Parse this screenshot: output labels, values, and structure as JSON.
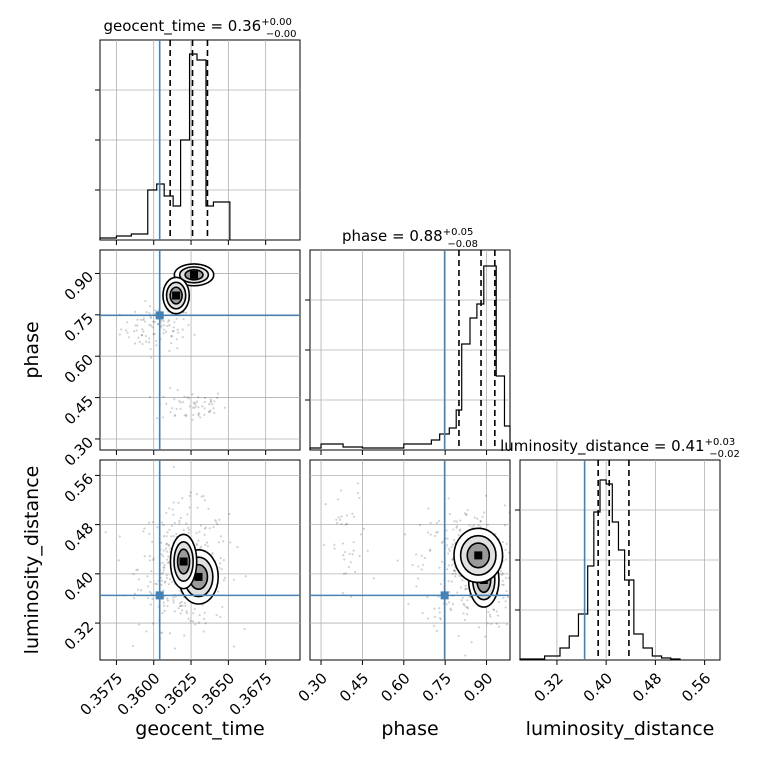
{
  "chart_data": {
    "type": "corner",
    "parameters": [
      "geocent_time",
      "phase",
      "luminosity_distance"
    ],
    "truth_color": "#4682b4",
    "truths": {
      "geocent_time": 0.3604,
      "phase": 0.748,
      "luminosity_distance": 0.365
    },
    "ranges": {
      "geocent_time": [
        0.3564,
        0.3698
      ],
      "phase": [
        0.26,
        0.985
      ],
      "luminosity_distance": [
        0.26,
        0.585
      ]
    },
    "titles": {
      "geocent_time": {
        "name": "geocent_time",
        "median": "0.36",
        "plus": "+0.00",
        "minus": "−0.00"
      },
      "phase": {
        "name": "phase",
        "median": "0.88",
        "plus": "+0.05",
        "minus": "−0.08"
      },
      "luminosity_distance": {
        "name": "luminosity_distance",
        "median": "0.41",
        "plus": "+0.03",
        "minus": "−0.02"
      }
    },
    "xlabels": [
      "geocent_time",
      "phase",
      "luminosity_distance"
    ],
    "ylabels": [
      "phase",
      "luminosity_distance"
    ],
    "ticks": {
      "geocent_time": [
        "0.3575",
        "0.3600",
        "0.3625",
        "0.3650",
        "0.3675"
      ],
      "phase": [
        "0.30",
        "0.45",
        "0.60",
        "0.75",
        "0.90"
      ],
      "luminosity_distance": [
        "0.32",
        "0.40",
        "0.48",
        "0.56"
      ]
    },
    "tick_values": {
      "geocent_time": [
        0.3575,
        0.36,
        0.3625,
        0.365,
        0.3675
      ],
      "phase": [
        0.3,
        0.45,
        0.6,
        0.75,
        0.9
      ],
      "luminosity_distance": [
        0.32,
        0.4,
        0.48,
        0.56
      ]
    },
    "histograms": {
      "geocent_time": {
        "edges": [
          0.3564,
          0.3575,
          0.3585,
          0.3596,
          0.3602,
          0.3607,
          0.3613,
          0.3618,
          0.3624,
          0.3629,
          0.3635,
          0.364,
          0.3646,
          0.3651
        ],
        "counts": [
          0.01,
          0.02,
          0.03,
          0.25,
          0.28,
          0.22,
          0.17,
          0.5,
          0.93,
          0.9,
          0.17,
          0.19,
          0.19
        ],
        "quantiles": [
          0.3611,
          0.3626,
          0.3636
        ]
      },
      "phase": {
        "edges": [
          0.26,
          0.3,
          0.38,
          0.45,
          0.6,
          0.7,
          0.73,
          0.765,
          0.79,
          0.81,
          0.84,
          0.865,
          0.89,
          0.91,
          0.935,
          0.965,
          0.985
        ],
        "counts": [
          0.01,
          0.03,
          0.015,
          0.01,
          0.03,
          0.05,
          0.08,
          0.11,
          0.2,
          0.53,
          0.66,
          0.73,
          0.92,
          0.92,
          0.37,
          0.12
        ],
        "quantiles": [
          0.8,
          0.88,
          0.93
        ]
      },
      "luminosity_distance": {
        "edges": [
          0.26,
          0.3,
          0.325,
          0.34,
          0.355,
          0.37,
          0.38,
          0.39,
          0.4,
          0.41,
          0.42,
          0.43,
          0.445,
          0.46,
          0.475,
          0.49,
          0.505,
          0.52
        ],
        "counts": [
          0.005,
          0.02,
          0.06,
          0.12,
          0.23,
          0.47,
          0.74,
          0.9,
          0.88,
          0.69,
          0.55,
          0.4,
          0.13,
          0.06,
          0.02,
          0.01,
          0.005
        ],
        "quantiles": [
          0.387,
          0.405,
          0.437
        ]
      }
    },
    "contours": [
      {
        "x": "geocent_time",
        "y": "phase",
        "regions": [
          {
            "cx": 0.3627,
            "cy": 0.895,
            "sx": 0.0006,
            "sy": 0.018
          },
          {
            "cx": 0.3615,
            "cy": 0.82,
            "sx": 0.0004,
            "sy": 0.03
          }
        ],
        "scatter": [
          {
            "cx": 0.3602,
            "cy": 0.7,
            "sx": 0.0012,
            "sy": 0.04,
            "n": 90
          },
          {
            "cx": 0.3625,
            "cy": 0.42,
            "sx": 0.0012,
            "sy": 0.03,
            "n": 60
          }
        ]
      },
      {
        "x": "geocent_time",
        "y": "luminosity_distance",
        "regions": [
          {
            "cx": 0.363,
            "cy": 0.395,
            "sx": 0.0006,
            "sy": 0.02
          },
          {
            "cx": 0.362,
            "cy": 0.42,
            "sx": 0.0004,
            "sy": 0.02
          }
        ],
        "scatter": [
          {
            "cx": 0.362,
            "cy": 0.41,
            "sx": 0.0015,
            "sy": 0.05,
            "n": 350
          }
        ]
      },
      {
        "x": "phase",
        "y": "luminosity_distance",
        "regions": [
          {
            "cx": 0.89,
            "cy": 0.39,
            "sx": 0.025,
            "sy": 0.02
          },
          {
            "cx": 0.87,
            "cy": 0.43,
            "sx": 0.04,
            "sy": 0.02
          }
        ],
        "scatter": [
          {
            "cx": 0.84,
            "cy": 0.41,
            "sx": 0.09,
            "sy": 0.05,
            "n": 350
          },
          {
            "cx": 0.4,
            "cy": 0.44,
            "sx": 0.04,
            "sy": 0.05,
            "n": 40
          }
        ]
      }
    ],
    "grid": true
  }
}
